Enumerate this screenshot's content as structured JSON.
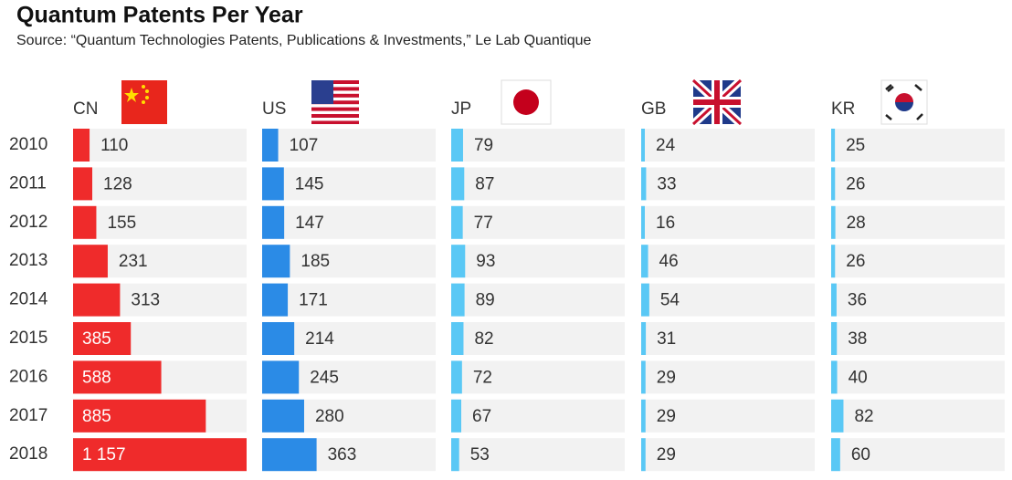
{
  "chart_data": {
    "type": "bar",
    "title": "Quantum Patents Per Year",
    "subtitle": "Source: “Quantum Technologies Patents, Publications & Investments,” Le Lab Quantique",
    "categories": [
      "2010",
      "2011",
      "2012",
      "2013",
      "2014",
      "2015",
      "2016",
      "2017",
      "2018"
    ],
    "series": [
      {
        "name": "CN",
        "color": "#ef2b2b",
        "values": [
          110,
          128,
          155,
          231,
          313,
          385,
          588,
          885,
          1157
        ],
        "value_labels": [
          "110",
          "128",
          "155",
          "231",
          "313",
          "385",
          "588",
          "885",
          "1 157"
        ]
      },
      {
        "name": "US",
        "color": "#2b8be6",
        "values": [
          107,
          145,
          147,
          185,
          171,
          214,
          245,
          280,
          363
        ]
      },
      {
        "name": "JP",
        "color": "#5ac8f5",
        "values": [
          79,
          87,
          77,
          93,
          89,
          82,
          72,
          67,
          53
        ]
      },
      {
        "name": "GB",
        "color": "#5ac8f5",
        "values": [
          24,
          33,
          16,
          46,
          54,
          31,
          29,
          29,
          29
        ]
      },
      {
        "name": "KR",
        "color": "#5ac8f5",
        "values": [
          25,
          26,
          28,
          26,
          36,
          38,
          40,
          82,
          60
        ]
      }
    ]
  }
}
